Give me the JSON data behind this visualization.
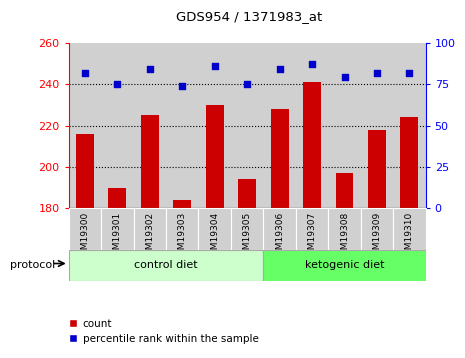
{
  "title": "GDS954 / 1371983_at",
  "samples": [
    "GSM19300",
    "GSM19301",
    "GSM19302",
    "GSM19303",
    "GSM19304",
    "GSM19305",
    "GSM19306",
    "GSM19307",
    "GSM19308",
    "GSM19309",
    "GSM19310"
  ],
  "count_values": [
    216,
    190,
    225,
    184,
    230,
    194,
    228,
    241,
    197,
    218,
    224
  ],
  "percentile_values": [
    82,
    75,
    84,
    74,
    86,
    75,
    84,
    87,
    79,
    82,
    82
  ],
  "ylim_left": [
    180,
    260
  ],
  "ylim_right": [
    0,
    100
  ],
  "yticks_left": [
    180,
    200,
    220,
    240,
    260
  ],
  "yticks_right": [
    0,
    25,
    50,
    75,
    100
  ],
  "bar_color": "#cc0000",
  "dot_color": "#0000cc",
  "n_control": 6,
  "n_keto": 5,
  "control_label": "control diet",
  "ketogenic_label": "ketogenic diet",
  "protocol_label": "protocol",
  "legend_count": "count",
  "legend_percentile": "percentile rank within the sample",
  "control_color": "#ccffcc",
  "ketogenic_color": "#66ff66",
  "bar_width": 0.55,
  "tick_bg_color": "#d0d0d0"
}
